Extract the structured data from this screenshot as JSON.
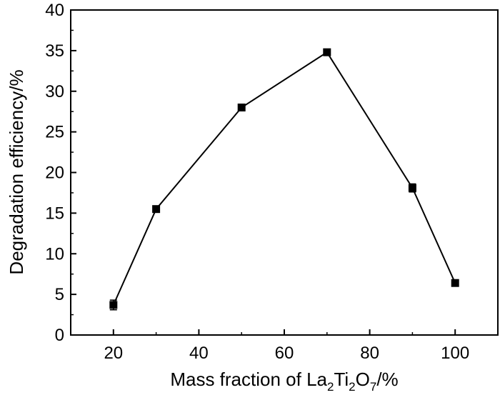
{
  "chart_data": {
    "type": "line",
    "title": "",
    "xlabel": {
      "prefix": "Mass fraction of La",
      "sub1": "2",
      "mid1": "Ti",
      "sub2": "2",
      "mid2": "O",
      "sub3": "7",
      "suffix": "/%"
    },
    "ylabel": "Degradation efficiency/%",
    "xlim": [
      10,
      110
    ],
    "ylim": [
      0,
      40
    ],
    "xticks": [
      20,
      40,
      60,
      80,
      100
    ],
    "yticks": [
      0,
      5,
      10,
      15,
      20,
      25,
      30,
      35,
      40
    ],
    "grid": false,
    "series": [
      {
        "marker": "square",
        "color": "#000000",
        "x": [
          20,
          30,
          50,
          70,
          90,
          100
        ],
        "y": [
          3.7,
          15.5,
          28.0,
          34.8,
          18.1,
          6.4
        ],
        "yerr": [
          0.6,
          0.3,
          0.2,
          0.2,
          0.5,
          0.2
        ]
      }
    ]
  }
}
